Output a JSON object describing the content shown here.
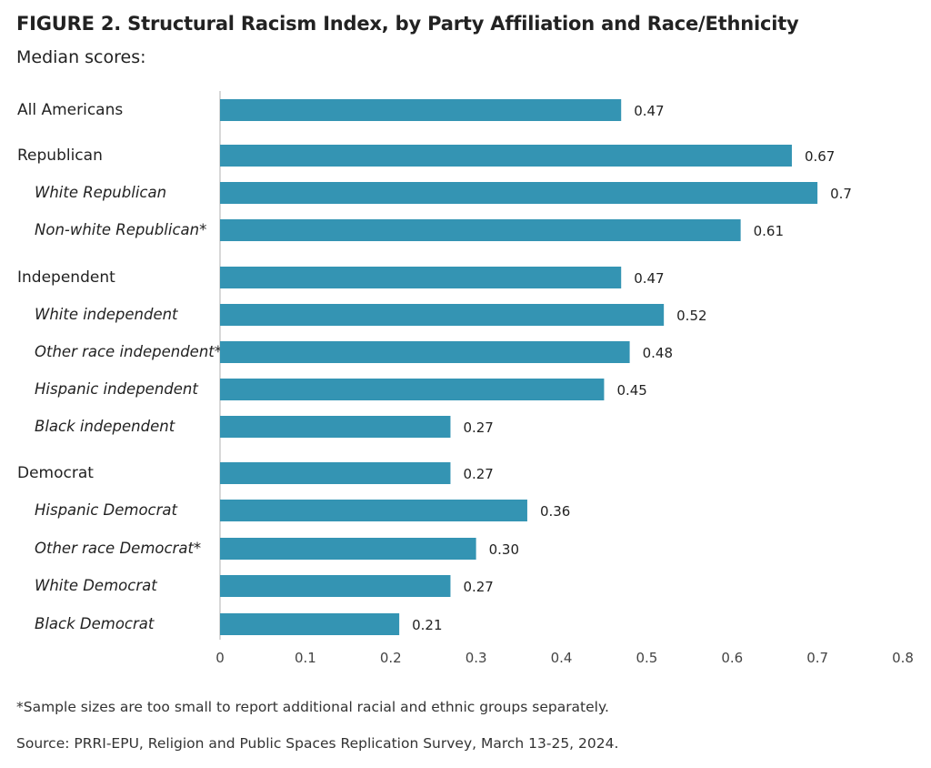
{
  "title": "FIGURE 2. Structural Racism Index, by Party Affiliation and Race/Ethnicity",
  "subtitle": "Median scores:",
  "footnote": "*Sample sizes are too small to report additional racial and ethnic groups separately.",
  "source": "Source: PRRI-EPU, Religion and Public Spaces Replication Survey, March 13-25, 2024.",
  "colors": {
    "bar": "#3494b3",
    "axis": "#cccccc",
    "text": "#222222"
  },
  "chart_data": {
    "type": "bar",
    "orientation": "horizontal",
    "xlim": [
      0,
      0.8
    ],
    "xticks": [
      "0",
      "0.1",
      "0.2",
      "0.3",
      "0.4",
      "0.5",
      "0.6",
      "0.7",
      "0.8"
    ],
    "grid": false,
    "categories": [
      "All Americans",
      "Republican",
      "White Republican",
      "Non-white Republican*",
      "Independent",
      "White independent",
      "Other race independent*",
      "Hispanic independent",
      "Black independent",
      "Democrat",
      "Hispanic Democrat",
      "Other race Democrat*",
      "White Democrat",
      "Black Democrat"
    ],
    "italic": [
      false,
      false,
      true,
      true,
      false,
      true,
      true,
      true,
      true,
      false,
      true,
      true,
      true,
      true
    ],
    "values": [
      0.47,
      0.67,
      0.7,
      0.61,
      0.47,
      0.52,
      0.48,
      0.45,
      0.27,
      0.27,
      0.36,
      0.3,
      0.27,
      0.21
    ],
    "value_labels": [
      "0.47",
      "0.67",
      "0.7",
      "0.61",
      "0.47",
      "0.52",
      "0.48",
      "0.45",
      "0.27",
      "0.27",
      "0.36",
      "0.30",
      "0.27",
      "0.21"
    ]
  }
}
